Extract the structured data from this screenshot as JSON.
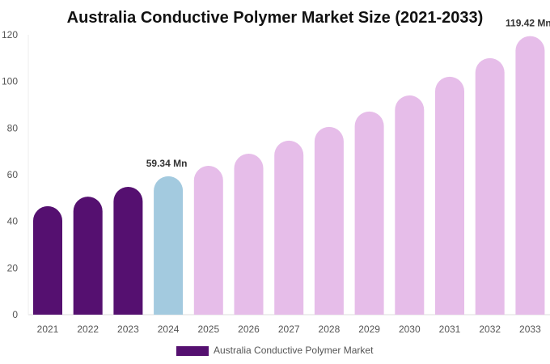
{
  "chart_data": {
    "type": "bar",
    "title": "Australia Conductive Polymer Market Size (2021-2033)",
    "categories": [
      "2021",
      "2022",
      "2023",
      "2024",
      "2025",
      "2026",
      "2027",
      "2028",
      "2029",
      "2030",
      "2031",
      "2032",
      "2033"
    ],
    "series": [
      {
        "name": "Australia Conductive Polymer Market",
        "values": [
          46.5,
          50.6,
          54.8,
          59.34,
          63.8,
          69.0,
          74.6,
          80.5,
          87.1,
          94.0,
          102.0,
          110.0,
          119.42
        ]
      }
    ],
    "data_labels": [
      {
        "index": 3,
        "text": "59.34 Mn"
      },
      {
        "index": 12,
        "text": "119.42 Mn"
      }
    ],
    "ylim": [
      0,
      120
    ],
    "yticks": [
      0,
      20,
      40,
      60,
      80,
      100,
      120
    ],
    "grid": false,
    "legend_position": "bottom",
    "colors": {
      "historical": "#551070",
      "current": "#a3cadf",
      "forecast": "#e6bde9"
    }
  }
}
